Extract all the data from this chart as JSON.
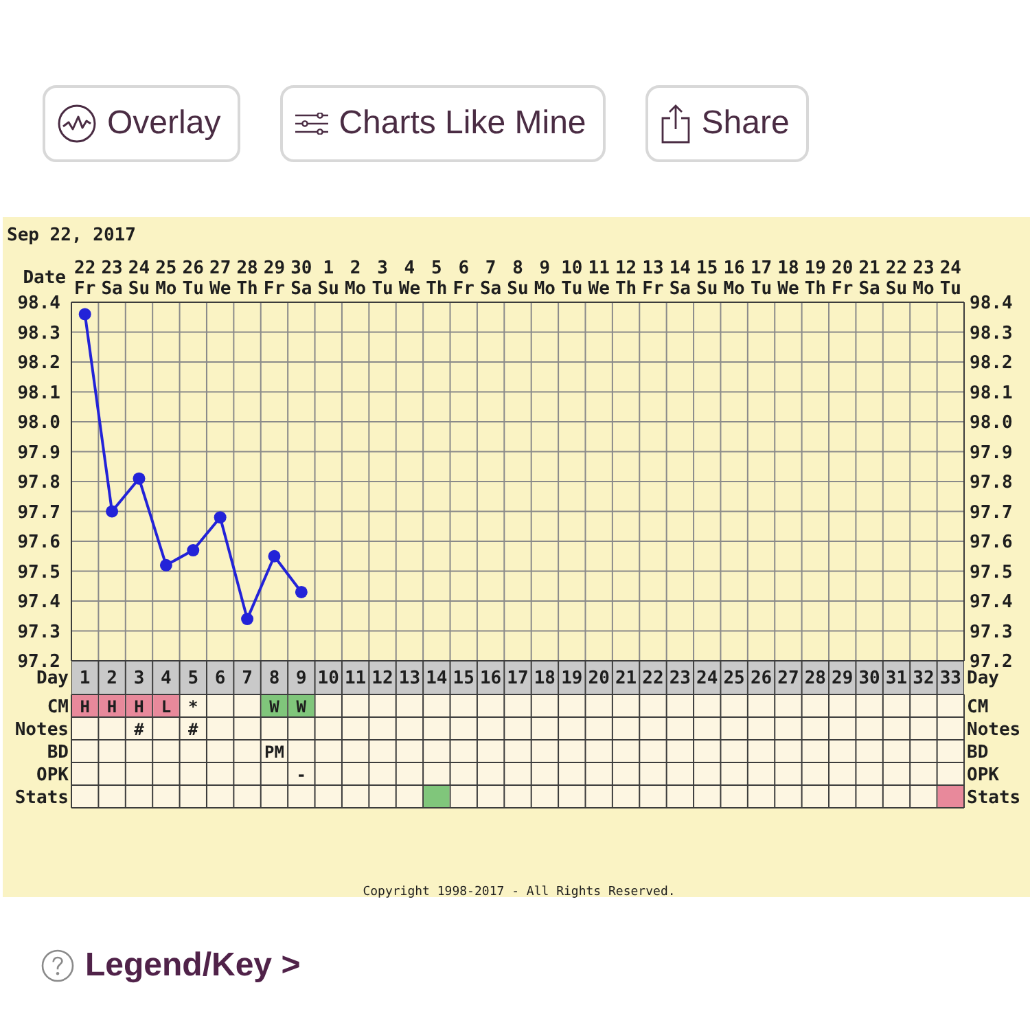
{
  "chart_data": [
    {
      "type": "other",
      "annotations": [
        "Overlay",
        "Charts Like Mine",
        "Share"
      ]
    },
    {
      "type": "line",
      "title": "Sep 22, 2017",
      "x2label": "Date",
      "xlabel": "Day",
      "x": [
        1,
        2,
        3,
        4,
        5,
        6,
        7,
        8,
        9
      ],
      "values": [
        98.36,
        97.7,
        97.81,
        97.52,
        97.57,
        97.68,
        97.34,
        97.55,
        97.43
      ],
      "color": "#2323d8",
      "xlim": [
        0.5,
        33.5
      ],
      "xticks": [
        1,
        2,
        3,
        4,
        5,
        6,
        7,
        8,
        9,
        10,
        11,
        12,
        13,
        14,
        15,
        16,
        17,
        18,
        19,
        20,
        21,
        22,
        23,
        24,
        25,
        26,
        27,
        28,
        29,
        30,
        31,
        32,
        33
      ],
      "x2lim": [
        "2017-09-21T12:00",
        "2017-10-24T12:00"
      ],
      "x2ticks": [
        {
          "value": "2017-09-22",
          "label": "22 Fr"
        },
        {
          "value": "2017-09-23",
          "label": "23 Sa"
        },
        {
          "value": "2017-09-24",
          "label": "24 Su"
        },
        {
          "value": "2017-09-25",
          "label": "25 Mo"
        },
        {
          "value": "2017-09-26",
          "label": "26 Tu"
        },
        {
          "value": "2017-09-27",
          "label": "27 We"
        },
        {
          "value": "2017-09-28",
          "label": "28 Th"
        },
        {
          "value": "2017-09-29",
          "label": "29 Fr"
        },
        {
          "value": "2017-09-30",
          "label": "30 Sa"
        },
        {
          "value": "2017-10-01",
          "label": "1 Su"
        },
        {
          "value": "2017-10-02",
          "label": "2 Mo"
        },
        {
          "value": "2017-10-03",
          "label": "3 Tu"
        },
        {
          "value": "2017-10-04",
          "label": "4 We"
        },
        {
          "value": "2017-10-05",
          "label": "5 Th"
        },
        {
          "value": "2017-10-06",
          "label": "6 Fr"
        },
        {
          "value": "2017-10-07",
          "label": "7 Sa"
        },
        {
          "value": "2017-10-08",
          "label": "8 Su"
        },
        {
          "value": "2017-10-09",
          "label": "9 Mo"
        },
        {
          "value": "2017-10-10",
          "label": "10 Tu"
        },
        {
          "value": "2017-10-11",
          "label": "11 We"
        },
        {
          "value": "2017-10-12",
          "label": "12 Th"
        },
        {
          "value": "2017-10-13",
          "label": "13 Fr"
        },
        {
          "value": "2017-10-14",
          "label": "14 Sa"
        },
        {
          "value": "2017-10-15",
          "label": "15 Su"
        },
        {
          "value": "2017-10-16",
          "label": "16 Mo"
        },
        {
          "value": "2017-10-17",
          "label": "17 Tu"
        },
        {
          "value": "2017-10-18",
          "label": "18 We"
        },
        {
          "value": "2017-10-19",
          "label": "19 Th"
        },
        {
          "value": "2017-10-20",
          "label": "20 Fr"
        },
        {
          "value": "2017-10-21",
          "label": "21 Sa"
        },
        {
          "value": "2017-10-22",
          "label": "22 Su"
        },
        {
          "value": "2017-10-23",
          "label": "23 Mo"
        },
        {
          "value": "2017-10-24",
          "label": "24 Tu"
        }
      ],
      "ylim": [
        97.2,
        98.4
      ],
      "yticks": [
        97.2,
        97.3,
        97.4,
        97.5,
        97.6,
        97.7,
        97.8,
        97.9,
        {
          "value": 98,
          "label": "98.0"
        },
        98.1,
        98.2,
        98.3,
        98.4
      ],
      "y2lim": [
        97.2,
        98.4
      ],
      "y2ticks": [
        97.2,
        97.3,
        97.4,
        97.5,
        97.6,
        97.7,
        97.8,
        97.9,
        {
          "value": 98,
          "label": "98.0"
        },
        98.1,
        98.2,
        98.3,
        98.4
      ],
      "grid": true,
      "marker": "circle",
      "line_style": "solid"
    },
    {
      "type": "other",
      "y_categories": [
        "CM",
        "Notes",
        "BD",
        "OPK",
        "Stats"
      ],
      "y2_categories": [
        "CM",
        "Notes",
        "BD",
        "OPK",
        "Stats"
      ],
      "cell_labels": [
        [
          "H",
          "H",
          "H",
          "L",
          "*",
          null,
          null,
          "W",
          "W",
          null,
          null,
          null,
          null,
          null,
          null,
          null,
          null,
          null,
          null,
          null,
          null,
          null,
          null,
          null,
          null,
          null,
          null,
          null,
          null,
          null,
          null,
          null,
          null
        ],
        [
          null,
          null,
          "#",
          null,
          "#",
          null,
          null,
          null,
          null,
          null,
          null,
          null,
          null,
          null,
          null,
          null,
          null,
          null,
          null,
          null,
          null,
          null,
          null,
          null,
          null,
          null,
          null,
          null,
          null,
          null,
          null,
          null,
          null
        ],
        [
          null,
          null,
          null,
          null,
          null,
          null,
          null,
          "PM",
          null,
          null,
          null,
          null,
          null,
          null,
          null,
          null,
          null,
          null,
          null,
          null,
          null,
          null,
          null,
          null,
          null,
          null,
          null,
          null,
          null,
          null,
          null,
          null,
          null
        ],
        [
          null,
          null,
          null,
          null,
          null,
          null,
          null,
          null,
          "-",
          null,
          null,
          null,
          null,
          null,
          null,
          null,
          null,
          null,
          null,
          null,
          null,
          null,
          null,
          null,
          null,
          null,
          null,
          null,
          null,
          null,
          null,
          null,
          null
        ],
        [
          null,
          null,
          null,
          null,
          null,
          null,
          null,
          null,
          null,
          null,
          null,
          null,
          null,
          null,
          null,
          null,
          null,
          null,
          null,
          null,
          null,
          null,
          null,
          null,
          null,
          null,
          null,
          null,
          null,
          null,
          null,
          null,
          null
        ]
      ],
      "colors": [
        [
          "#e8899b",
          "#e8899b",
          "#e8899b",
          "#e8899b",
          null,
          null,
          null,
          "#80c67b",
          "#80c67b",
          null,
          null,
          null,
          null,
          null,
          null,
          null,
          null,
          null,
          null,
          null,
          null,
          null,
          null,
          null,
          null,
          null,
          null,
          null,
          null,
          null,
          null,
          null,
          null
        ],
        [
          null,
          null,
          null,
          null,
          null,
          null,
          null,
          null,
          null,
          null,
          null,
          null,
          null,
          null,
          null,
          null,
          null,
          null,
          null,
          null,
          null,
          null,
          null,
          null,
          null,
          null,
          null,
          null,
          null,
          null,
          null,
          null,
          null
        ],
        [
          null,
          null,
          null,
          null,
          null,
          null,
          null,
          null,
          null,
          null,
          null,
          null,
          null,
          null,
          null,
          null,
          null,
          null,
          null,
          null,
          null,
          null,
          null,
          null,
          null,
          null,
          null,
          null,
          null,
          null,
          null,
          null,
          null
        ],
        [
          null,
          null,
          null,
          null,
          null,
          null,
          null,
          null,
          null,
          null,
          null,
          null,
          null,
          null,
          null,
          null,
          null,
          null,
          null,
          null,
          null,
          null,
          null,
          null,
          null,
          null,
          null,
          null,
          null,
          null,
          null,
          null,
          null
        ],
        [
          null,
          null,
          null,
          null,
          null,
          null,
          null,
          null,
          null,
          null,
          null,
          null,
          null,
          "#80c67b",
          null,
          null,
          null,
          null,
          null,
          null,
          null,
          null,
          null,
          null,
          null,
          null,
          null,
          null,
          null,
          null,
          null,
          null,
          "#e8899b"
        ]
      ],
      "annotations": [
        "Copyright 1998-2017 - All Rights Reserved."
      ]
    },
    {
      "type": "other",
      "annotations": [
        "Legend/Key >"
      ]
    }
  ]
}
